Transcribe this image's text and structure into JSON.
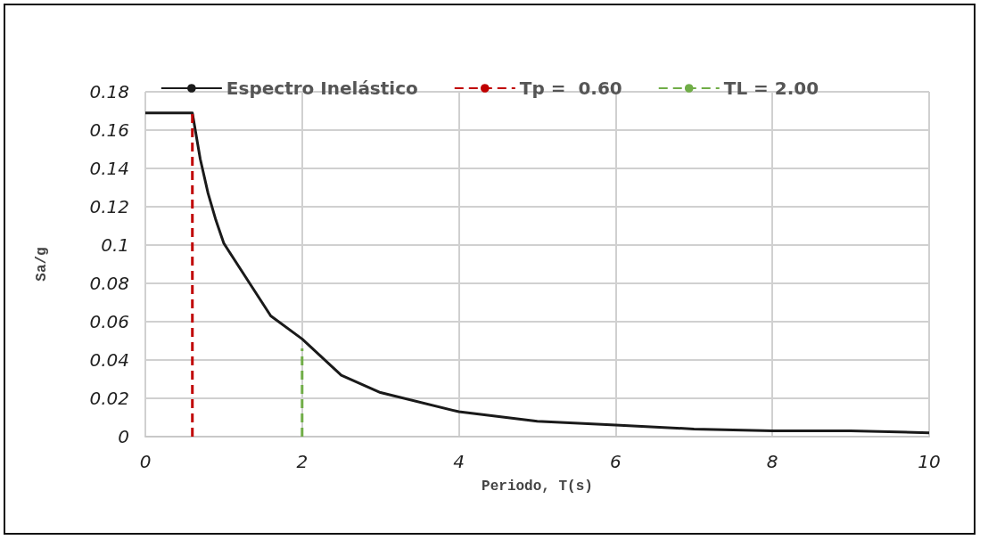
{
  "chart_data": {
    "type": "line",
    "xlabel": "Periodo, T(s)",
    "ylabel": "Sa/g",
    "xlim": [
      0,
      10
    ],
    "xticks": [
      0,
      2,
      4,
      6,
      8,
      10
    ],
    "ylim": [
      0,
      0.18
    ],
    "yticks": [
      0,
      0.02,
      0.04,
      0.06,
      0.08,
      0.1,
      0.12,
      0.14,
      0.16,
      0.18
    ],
    "grid": true,
    "legend": "top",
    "marker": "none",
    "series": [
      {
        "name": "Espectro Inelástico",
        "color": "#1a1a1a",
        "line_style": "solid",
        "x": [
          0,
          0.6,
          0.7,
          0.8,
          0.9,
          1,
          1.6,
          2,
          2.5,
          3,
          4,
          5,
          6,
          7,
          8,
          9,
          10
        ],
        "values": [
          0.169,
          0.169,
          0.145,
          0.127,
          0.113,
          0.101,
          0.063,
          0.051,
          0.032,
          0.023,
          0.013,
          0.008,
          0.006,
          0.004,
          0.003,
          0.003,
          0.002
        ]
      },
      {
        "name": "Tp =  0.60",
        "color": "#c00000",
        "line_style": "dashed",
        "x": [
          0.6,
          0.6
        ],
        "values": [
          0,
          0.169
        ]
      },
      {
        "name": "TL = 2.00",
        "color": "#70ad47",
        "line_style": "dashed",
        "x": [
          2,
          2
        ],
        "values": [
          0,
          0.046
        ]
      }
    ]
  }
}
